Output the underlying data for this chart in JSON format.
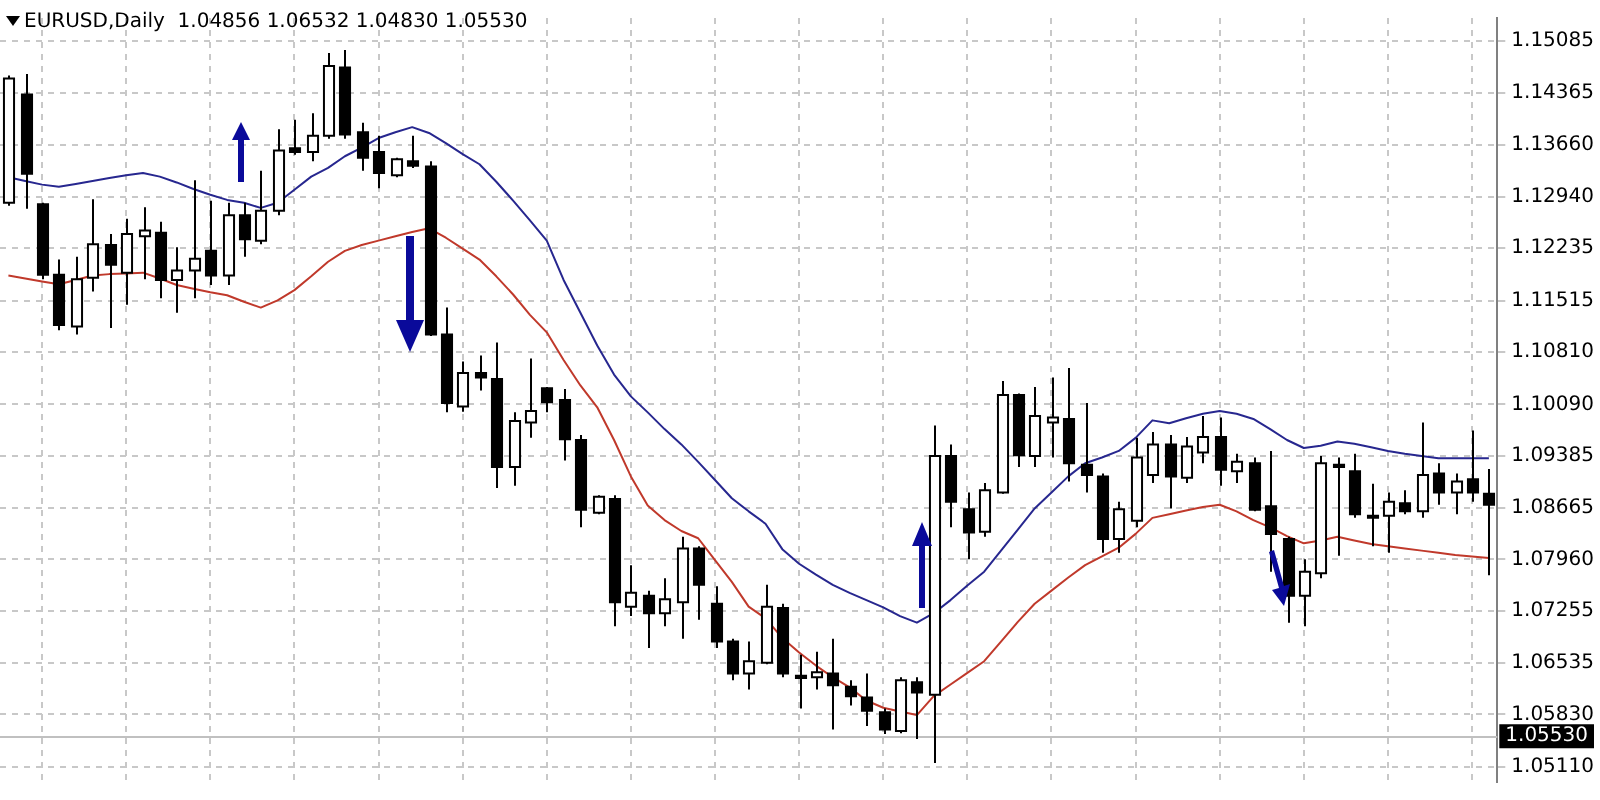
{
  "chart_data": {
    "type": "candlestick",
    "title": "EURUSD,Daily  1.04856 1.06532 1.04830 1.05530",
    "categories": [
      null,
      null,
      null,
      null,
      null,
      null,
      null,
      null,
      null,
      null,
      null,
      null,
      null,
      null,
      null,
      null,
      null,
      null,
      null,
      null,
      null,
      null,
      null,
      null,
      null,
      null,
      null,
      null,
      null,
      null,
      null,
      null,
      null,
      null,
      null,
      null,
      null,
      null,
      null,
      null,
      null,
      null,
      null,
      null,
      null,
      null,
      null,
      null,
      null,
      null,
      null,
      null,
      null,
      null,
      null,
      null,
      null,
      null,
      null,
      null,
      null,
      null,
      null,
      null,
      null,
      null,
      null,
      null,
      null,
      null,
      null,
      null,
      null,
      null,
      null,
      null,
      null,
      null,
      null,
      null,
      null,
      null,
      null,
      null,
      null,
      null,
      null,
      null,
      null
    ],
    "ohlc": [
      [
        1.1286,
        1.1461,
        1.1282,
        1.1457
      ],
      [
        1.1435,
        1.1463,
        1.1278,
        1.1326
      ],
      [
        1.1284,
        1.1286,
        1.1181,
        1.1187
      ],
      [
        1.1187,
        1.1208,
        1.1111,
        1.1118
      ],
      [
        1.1116,
        1.1212,
        1.1105,
        1.1181
      ],
      [
        1.1183,
        1.1291,
        1.1164,
        1.1229
      ],
      [
        1.1228,
        1.1243,
        1.1114,
        1.1201
      ],
      [
        1.119,
        1.1264,
        1.1146,
        1.1243
      ],
      [
        1.124,
        1.128,
        1.1181,
        1.1248
      ],
      [
        1.1245,
        1.126,
        1.1155,
        1.118
      ],
      [
        1.118,
        1.1225,
        1.1135,
        1.1193
      ],
      [
        1.1193,
        1.1317,
        1.1155,
        1.1209
      ],
      [
        1.122,
        1.1289,
        1.1173,
        1.1186
      ],
      [
        1.1186,
        1.1286,
        1.1173,
        1.1269
      ],
      [
        1.1269,
        1.1286,
        1.1212,
        1.1236
      ],
      [
        1.1234,
        1.133,
        1.1229,
        1.1275
      ],
      [
        1.1275,
        1.1387,
        1.1269,
        1.1358
      ],
      [
        1.1361,
        1.14,
        1.1352,
        1.1356
      ],
      [
        1.1356,
        1.1409,
        1.1343,
        1.1378
      ],
      [
        1.1378,
        1.1492,
        1.1374,
        1.1474
      ],
      [
        1.1472,
        1.1496,
        1.1374,
        1.138
      ],
      [
        1.1383,
        1.1396,
        1.133,
        1.1348
      ],
      [
        1.1356,
        1.1378,
        1.1306,
        1.1327
      ],
      [
        1.1324,
        1.1348,
        1.1321,
        1.1346
      ],
      [
        1.1343,
        1.1378,
        1.1334,
        1.1337
      ],
      [
        1.1336,
        1.1343,
        1.1103,
        1.1105
      ],
      [
        1.1105,
        1.1142,
        1.0998,
        1.1011
      ],
      [
        1.1006,
        1.1068,
        1.0999,
        1.1052
      ],
      [
        1.1052,
        1.1076,
        1.1028,
        1.1046
      ],
      [
        1.1044,
        1.1094,
        1.0894,
        1.0923
      ],
      [
        1.0923,
        1.0998,
        1.0897,
        1.0986
      ],
      [
        1.0984,
        1.1072,
        1.0963,
        1.1
      ],
      [
        1.1031,
        1.1033,
        1.0998,
        1.1012
      ],
      [
        1.1015,
        1.103,
        1.0932,
        1.0961
      ],
      [
        1.096,
        1.0967,
        1.084,
        1.0864
      ],
      [
        1.086,
        1.0884,
        1.0858,
        1.0882
      ],
      [
        1.0879,
        1.0884,
        1.0704,
        1.0737
      ],
      [
        1.0731,
        1.0788,
        1.0718,
        1.075
      ],
      [
        1.0746,
        1.0753,
        1.0674,
        1.0722
      ],
      [
        1.0722,
        1.077,
        1.0704,
        1.0741
      ],
      [
        1.0737,
        1.0827,
        1.0687,
        1.0811
      ],
      [
        1.0811,
        1.0814,
        1.0713,
        1.0761
      ],
      [
        1.0735,
        1.0759,
        1.0674,
        1.0683
      ],
      [
        1.0683,
        1.0687,
        1.063,
        1.0639
      ],
      [
        1.0639,
        1.0683,
        1.0617,
        1.0656
      ],
      [
        1.0654,
        1.0761,
        1.0652,
        1.0731
      ],
      [
        1.0729,
        1.0735,
        1.0634,
        1.0639
      ],
      [
        1.0636,
        1.0665,
        1.0591,
        1.0633
      ],
      [
        1.0634,
        1.0669,
        1.0617,
        1.0641
      ],
      [
        1.0639,
        1.0687,
        1.0562,
        1.0623
      ],
      [
        1.0621,
        1.063,
        1.0595,
        1.0608
      ],
      [
        1.0606,
        1.0639,
        1.0567,
        1.0588
      ],
      [
        1.0586,
        1.0591,
        1.0556,
        1.0562
      ],
      [
        1.056,
        1.0634,
        1.0557,
        1.063
      ],
      [
        1.0627,
        1.0634,
        1.0549,
        1.0613
      ],
      [
        1.061,
        1.098,
        1.0516,
        1.0938
      ],
      [
        1.0938,
        1.0954,
        1.084,
        1.0875
      ],
      [
        1.0865,
        1.0888,
        1.0796,
        1.0833
      ],
      [
        1.0834,
        1.0901,
        1.0827,
        1.0891
      ],
      [
        1.0888,
        1.1041,
        1.0886,
        1.1022
      ],
      [
        1.1022,
        1.1024,
        1.0923,
        1.0939
      ],
      [
        1.0938,
        1.1033,
        1.0923,
        1.0993
      ],
      [
        1.0984,
        1.1046,
        1.0936,
        1.0991
      ],
      [
        1.0989,
        1.1059,
        1.0903,
        1.0928
      ],
      [
        1.0926,
        1.1011,
        1.0888,
        1.0912
      ],
      [
        1.091,
        1.0914,
        1.0805,
        1.0824
      ],
      [
        1.0824,
        1.0875,
        1.0805,
        1.0865
      ],
      [
        1.0849,
        1.0963,
        1.084,
        1.0936
      ],
      [
        1.0912,
        1.0971,
        1.0901,
        1.0954
      ],
      [
        1.0954,
        1.0967,
        1.0866,
        1.091
      ],
      [
        1.0908,
        1.0964,
        1.0901,
        1.0951
      ],
      [
        1.0943,
        1.0993,
        1.0928,
        1.0964
      ],
      [
        1.0964,
        1.0991,
        1.0897,
        1.0919
      ],
      [
        1.0917,
        1.0941,
        1.0901,
        1.093
      ],
      [
        1.0928,
        1.0936,
        1.0862,
        1.0864
      ],
      [
        1.0869,
        1.0945,
        1.0779,
        1.0831
      ],
      [
        1.0824,
        1.0827,
        1.0709,
        1.0746
      ],
      [
        1.0746,
        1.0796,
        1.0704,
        1.0779
      ],
      [
        1.0777,
        1.0938,
        1.077,
        1.0928
      ],
      [
        1.0926,
        1.0936,
        1.0801,
        1.0923
      ],
      [
        1.0917,
        1.0941,
        1.0853,
        1.0858
      ],
      [
        1.0856,
        1.09,
        1.0814,
        1.0853
      ],
      [
        1.0856,
        1.0888,
        1.0805,
        1.0875
      ],
      [
        1.0873,
        1.0891,
        1.0858,
        1.0862
      ],
      [
        1.0862,
        1.0984,
        1.0853,
        1.0912
      ],
      [
        1.0914,
        1.0928,
        1.0871,
        1.0888
      ],
      [
        1.0888,
        1.0914,
        1.0858,
        1.0903
      ],
      [
        1.0906,
        1.0973,
        1.0875,
        1.0888
      ],
      [
        1.0886,
        1.092,
        1.0774,
        1.0871
      ]
    ],
    "series": [
      {
        "type": "line",
        "color": "#27278f",
        "values": [
          1.1321,
          1.1316,
          1.1311,
          1.1308,
          1.1312,
          1.1316,
          1.132,
          1.1324,
          1.1327,
          1.1322,
          1.1314,
          1.1305,
          1.1297,
          1.129,
          1.1286,
          1.1279,
          1.1286,
          1.1304,
          1.1322,
          1.1334,
          1.135,
          1.1362,
          1.1375,
          1.1383,
          1.139,
          1.1382,
          1.1368,
          1.1353,
          1.1339,
          1.1315,
          1.1289,
          1.1262,
          1.1234,
          1.118,
          1.1135,
          1.109,
          1.105,
          1.102,
          1.0998,
          1.0975,
          1.0954,
          1.093,
          1.0905,
          1.088,
          1.0862,
          1.0845,
          1.081,
          1.079,
          1.0775,
          1.0761,
          1.075,
          1.074,
          1.073,
          1.0718,
          1.0709,
          1.0722,
          1.074,
          1.076,
          1.0779,
          1.0808,
          1.0837,
          1.0866,
          1.0888,
          1.091,
          1.0928,
          1.0936,
          1.0945,
          1.0963,
          1.0987,
          1.0983,
          1.099,
          1.0996,
          1.1,
          1.0996,
          1.0989,
          1.0975,
          1.096,
          1.0949,
          1.0952,
          1.0958,
          1.0955,
          1.095,
          1.0945,
          1.0941,
          1.0938,
          1.0935,
          1.0935,
          1.0935,
          1.0935
        ]
      },
      {
        "type": "line",
        "color": "#c0392b",
        "values": [
          1.1186,
          1.1182,
          1.1178,
          1.1174,
          1.118,
          1.1186,
          1.1188,
          1.1189,
          1.119,
          1.1182,
          1.1173,
          1.1168,
          1.1163,
          1.1159,
          1.115,
          1.1142,
          1.1152,
          1.1166,
          1.1185,
          1.1205,
          1.122,
          1.1228,
          1.1234,
          1.124,
          1.1246,
          1.1251,
          1.1238,
          1.1223,
          1.1208,
          1.1185,
          1.116,
          1.1132,
          1.1108,
          1.107,
          1.1035,
          1.1005,
          1.096,
          1.091,
          1.087,
          1.085,
          1.0835,
          1.0825,
          1.0795,
          1.0765,
          1.0731,
          1.0715,
          1.0688,
          1.0668,
          1.065,
          1.0634,
          1.062,
          1.0602,
          1.0592,
          1.0587,
          1.0582,
          1.0608,
          1.0624,
          1.064,
          1.0656,
          1.0683,
          1.071,
          1.0735,
          1.0753,
          1.0771,
          1.0788,
          1.08,
          1.0812,
          1.0831,
          1.0853,
          1.0858,
          1.0863,
          1.0868,
          1.0871,
          1.0862,
          1.085,
          1.084,
          1.0828,
          1.0818,
          1.0822,
          1.0827,
          1.0822,
          1.0817,
          1.0814,
          1.0811,
          1.0808,
          1.0805,
          1.0802,
          1.08,
          1.0798
        ]
      }
    ],
    "ylim": [
      1.049,
      1.154
    ],
    "yticks": [
      1.15085,
      1.14365,
      {
        "value": 1.1366,
        "label": "1.13660"
      },
      {
        "value": 1.1294,
        "label": "1.12940"
      },
      1.12235,
      1.11515,
      {
        "value": 1.1081,
        "label": "1.10810"
      },
      {
        "value": 1.1009,
        "label": "1.10090"
      },
      1.09385,
      1.08665,
      {
        "value": 1.0796,
        "label": "1.07960"
      },
      1.07255,
      1.06535,
      {
        "value": 1.0583,
        "label": "1.05830"
      },
      {
        "value": 1.0511,
        "label": "1.05110"
      }
    ],
    "ref_lines": [
      {
        "axis": "y",
        "value": 1.0553,
        "label": "1.05530",
        "color": "#c0c0c0"
      }
    ],
    "grid": true,
    "tick_labels": "y",
    "marker": "none"
  }
}
